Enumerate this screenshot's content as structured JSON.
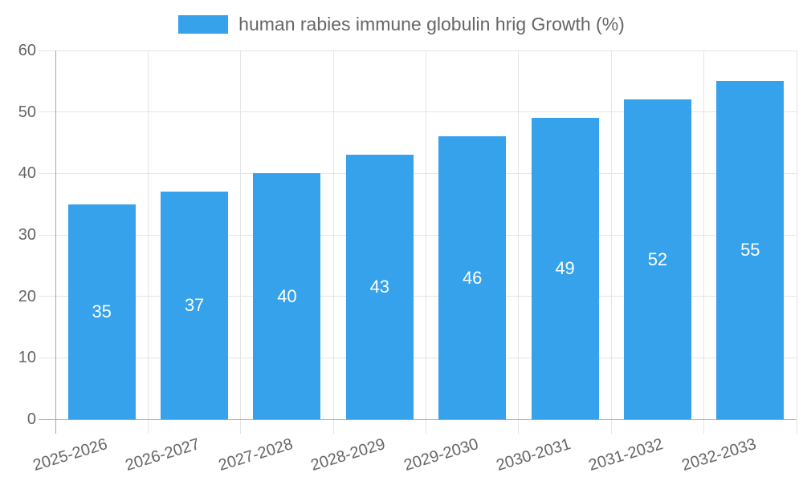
{
  "chart_data": {
    "type": "bar",
    "title": "human rabies immune globulin hrig Growth (%)",
    "categories": [
      "2025-2026",
      "2026-2027",
      "2027-2028",
      "2028-2029",
      "2029-2030",
      "2030-2031",
      "2031-2032",
      "2032-2033"
    ],
    "values": [
      35,
      37,
      40,
      43,
      46,
      49,
      52,
      55
    ],
    "xlabel": "",
    "ylabel": "",
    "ylim": [
      0,
      60
    ],
    "y_ticks": [
      0,
      10,
      20,
      30,
      40,
      50,
      60
    ],
    "grid": "on",
    "legend_position": "top",
    "value_labels": "inside-center-white",
    "x_label_rotation_deg": -17
  },
  "legend": {
    "label": "human rabies immune globulin hrig Growth (%)",
    "swatch_color": "#36A2EB"
  },
  "colors": {
    "bar": "#36A2EB",
    "text": "#666666",
    "grid": "#e5e5e5",
    "axis": "#a8a8a8",
    "value_label": "#ffffff",
    "background": "#ffffff"
  }
}
